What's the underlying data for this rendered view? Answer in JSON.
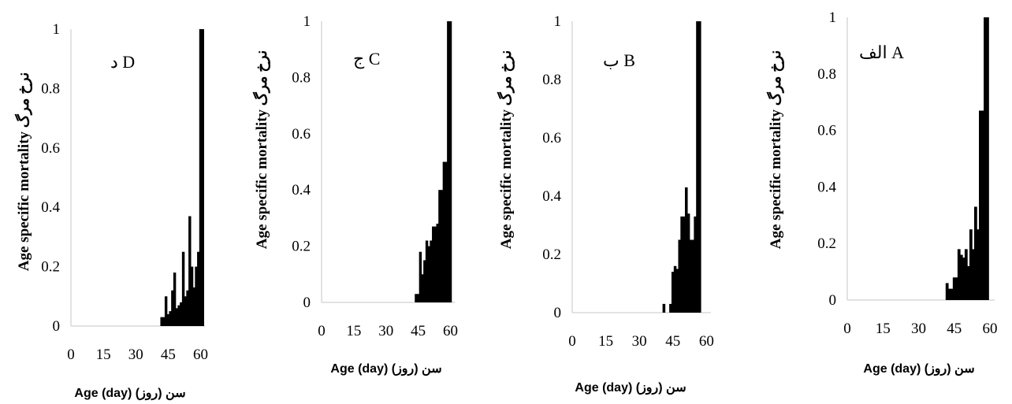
{
  "chart_data": [
    {
      "type": "bar",
      "panel_label": "د D",
      "ylabel": "Age specific mortality نرخ مرگ",
      "xlabel": "Age (day) سن (روز)",
      "xlim": [
        0,
        62
      ],
      "ylim": [
        0,
        1
      ],
      "xticks": [
        "0",
        "15",
        "30",
        "45",
        "60"
      ],
      "yticks": [
        "0",
        "0.2",
        "0.4",
        "0.6",
        "0.8",
        "1"
      ],
      "x": [
        42,
        43,
        44,
        45,
        46,
        47,
        48,
        49,
        50,
        51,
        52,
        53,
        54,
        55,
        56,
        57,
        58,
        59,
        60,
        61
      ],
      "values": [
        0.03,
        0.03,
        0.1,
        0.04,
        0.05,
        0.12,
        0.18,
        0.06,
        0.07,
        0.08,
        0.25,
        0.1,
        0.12,
        0.37,
        0.2,
        0.13,
        0.2,
        0.25,
        1.0,
        1.0
      ]
    },
    {
      "type": "bar",
      "panel_label": "ج C",
      "ylabel": "Age specific mortality نرخ مرگ",
      "xlabel": "Age (day) سن (روز)",
      "xlim": [
        0,
        62
      ],
      "ylim": [
        0,
        1
      ],
      "xticks": [
        "0",
        "15",
        "30",
        "45",
        "60"
      ],
      "yticks": [
        "0",
        "0.2",
        "0.4",
        "0.6",
        "0.8",
        "1"
      ],
      "x": [
        44,
        45,
        46,
        47,
        48,
        49,
        50,
        51,
        52,
        53,
        54,
        55,
        56,
        57,
        58,
        59,
        60
      ],
      "values": [
        0.03,
        0.03,
        0.18,
        0.1,
        0.15,
        0.22,
        0.2,
        0.22,
        0.27,
        0.27,
        0.28,
        0.4,
        0.4,
        0.5,
        0.5,
        1.0,
        1.0
      ]
    },
    {
      "type": "bar",
      "panel_label": "ب B",
      "ylabel": "Age specific mortality نرخ مرگ",
      "xlabel": "Age (day)  سن (روز)",
      "xlim": [
        0,
        62
      ],
      "ylim": [
        0,
        1
      ],
      "xticks": [
        "0",
        "15",
        "30",
        "45",
        "60"
      ],
      "yticks": [
        "0",
        "0.2",
        "0.4",
        "0.6",
        "0.8",
        "1"
      ],
      "x": [
        41,
        44,
        45,
        46,
        47,
        48,
        49,
        50,
        51,
        52,
        53,
        54,
        55,
        56,
        57
      ],
      "values": [
        0.03,
        0.03,
        0.14,
        0.16,
        0.15,
        0.25,
        0.33,
        0.33,
        0.43,
        0.34,
        0.25,
        0.25,
        0.33,
        1.0,
        1.0
      ]
    },
    {
      "type": "bar",
      "panel_label": "الف A",
      "ylabel": "Age specific mortality نرخ مرگ",
      "xlabel": "Age (day) سن (روز)",
      "xlim": [
        0,
        62
      ],
      "ylim": [
        0,
        1
      ],
      "xticks": [
        "0",
        "15",
        "30",
        "45",
        "60"
      ],
      "yticks": [
        "0",
        "0.2",
        "0.4",
        "0.6",
        "0.8",
        "1"
      ],
      "x": [
        42,
        43,
        44,
        45,
        46,
        47,
        48,
        49,
        50,
        51,
        52,
        53,
        54,
        55,
        56,
        57,
        58,
        59
      ],
      "values": [
        0.06,
        0.04,
        0.04,
        0.08,
        0.08,
        0.18,
        0.16,
        0.15,
        0.18,
        0.12,
        0.25,
        0.18,
        0.33,
        0.25,
        0.67,
        0.67,
        1.0,
        1.0
      ]
    }
  ]
}
